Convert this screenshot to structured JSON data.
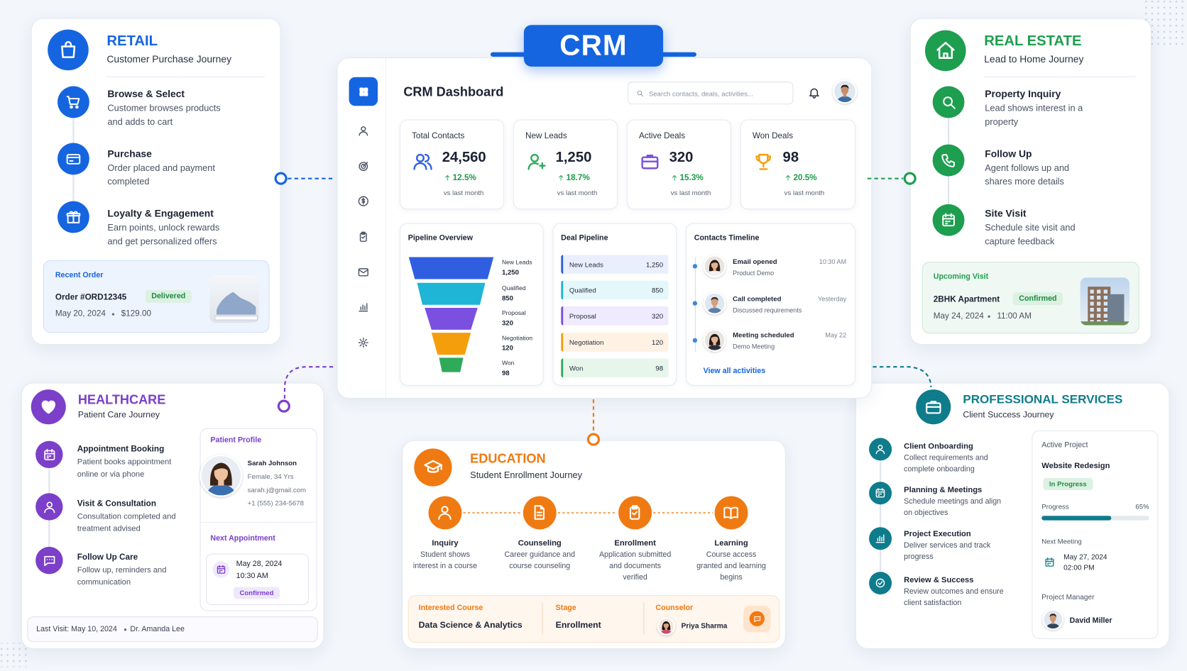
{
  "header": {
    "title": "CRM"
  },
  "dashboard": {
    "title": "CRM Dashboard",
    "search_placeholder": "Search contacts, deals, activities...",
    "stats": [
      {
        "label": "Total Contacts",
        "value": "24,560",
        "change": "12.5%",
        "note": "vs last month"
      },
      {
        "label": "New Leads",
        "value": "1,250",
        "change": "18.7%",
        "note": "vs last month"
      },
      {
        "label": "Active Deals",
        "value": "320",
        "change": "15.3%",
        "note": "vs last month"
      },
      {
        "label": "Won Deals",
        "value": "98",
        "change": "20.5%",
        "note": "vs last month"
      }
    ],
    "pipeline_overview": {
      "title": "Pipeline Overview",
      "stages": [
        {
          "name": "New Leads",
          "value": "1,250"
        },
        {
          "name": "Qualified",
          "value": "850"
        },
        {
          "name": "Proposal",
          "value": "320"
        },
        {
          "name": "Negotiation",
          "value": "120"
        },
        {
          "name": "Won",
          "value": "98"
        }
      ]
    },
    "deal_pipeline": {
      "title": "Deal Pipeline",
      "stages": [
        {
          "name": "New Leads",
          "value": "1,250"
        },
        {
          "name": "Qualified",
          "value": "850"
        },
        {
          "name": "Proposal",
          "value": "320"
        },
        {
          "name": "Negotiation",
          "value": "120"
        },
        {
          "name": "Won",
          "value": "98"
        }
      ]
    },
    "contacts_timeline": {
      "title": "Contacts Timeline",
      "items": [
        {
          "title": "Email opened",
          "text": "Product Demo",
          "time": "10:30 AM"
        },
        {
          "title": "Call completed",
          "text": "Discussed requirements",
          "time": "Yesterday"
        },
        {
          "title": "Meeting scheduled",
          "text": "Demo Meeting",
          "time": "May 22"
        }
      ],
      "link": "View all activities"
    }
  },
  "retail": {
    "title": "RETAIL",
    "subtitle": "Customer Purchase Journey",
    "steps": [
      {
        "title": "Browse & Select",
        "text": "Customer browses products and adds to cart"
      },
      {
        "title": "Purchase",
        "text": "Order placed and payment completed"
      },
      {
        "title": "Loyalty & Engagement",
        "text": "Earn points, unlock rewards and get personalized offers"
      }
    ],
    "order": {
      "label": "Recent Order",
      "id": "Order #ORD12345",
      "status": "Delivered",
      "date": "May 20, 2024",
      "amount": "$129.00"
    }
  },
  "real_estate": {
    "title": "REAL ESTATE",
    "subtitle": "Lead to Home Journey",
    "steps": [
      {
        "title": "Property Inquiry",
        "text": "Lead shows interest in a property"
      },
      {
        "title": "Follow Up",
        "text": "Agent follows up and shares more details"
      },
      {
        "title": "Site Visit",
        "text": "Schedule site visit and capture feedback"
      }
    ],
    "visit": {
      "label": "Upcoming Visit",
      "property": "2BHK Apartment",
      "status": "Confirmed",
      "date": "May 24, 2024",
      "time": "11:00 AM"
    }
  },
  "healthcare": {
    "title": "HEALTHCARE",
    "subtitle": "Patient Care Journey",
    "steps": [
      {
        "title": "Appointment Booking",
        "text": "Patient books appointment online or via phone"
      },
      {
        "title": "Visit & Consultation",
        "text": "Consultation completed and treatment advised"
      },
      {
        "title": "Follow Up Care",
        "text": "Follow up, reminders and communication"
      }
    ],
    "profile": {
      "label": "Patient Profile",
      "name": "Sarah Johnson",
      "info": "Female, 34 Yrs",
      "email": "sarah.j@gmail.com",
      "phone": "+1 (555) 234-5678"
    },
    "appointment": {
      "label": "Next Appointment",
      "date": "May 28, 2024",
      "time": "10:30 AM",
      "status": "Confirmed"
    },
    "footer": {
      "last_visit": "Last Visit: May 10, 2024",
      "doctor": "Dr. Amanda Lee"
    }
  },
  "education": {
    "title": "EDUCATION",
    "subtitle": "Student Enrollment Journey",
    "steps": [
      {
        "title": "Inquiry",
        "text": "Student shows interest in a course"
      },
      {
        "title": "Counseling",
        "text": "Career guidance and course counseling"
      },
      {
        "title": "Enrollment",
        "text": "Application submitted and documents verified"
      },
      {
        "title": "Learning",
        "text": "Course access granted and learning begins"
      }
    ],
    "course": {
      "label": "Interested Course",
      "value": "Data Science & Analytics"
    },
    "stage": {
      "label": "Stage",
      "value": "Enrollment"
    },
    "counselor": {
      "label": "Counselor",
      "value": "Priya Sharma"
    }
  },
  "professional_services": {
    "title": "PROFESSIONAL SERVICES",
    "subtitle": "Client Success Journey",
    "steps": [
      {
        "title": "Client Onboarding",
        "text": "Collect requirements and complete onboarding"
      },
      {
        "title": "Planning & Meetings",
        "text": "Schedule meetings and align on objectives"
      },
      {
        "title": "Project Execution",
        "text": "Deliver services and track progress"
      },
      {
        "title": "Review & Success",
        "text": "Review outcomes and ensure client satisfaction"
      }
    ],
    "project": {
      "label": "Active Project",
      "name": "Website Redesign",
      "status": "In Progress",
      "progress_label": "Progress",
      "progress": 65,
      "progress_text": "65%",
      "meeting_label": "Next Meeting",
      "meeting_date": "May 27, 2024",
      "meeting_time": "02:00 PM",
      "manager_label": "Project Manager",
      "manager": "David Miller"
    }
  }
}
